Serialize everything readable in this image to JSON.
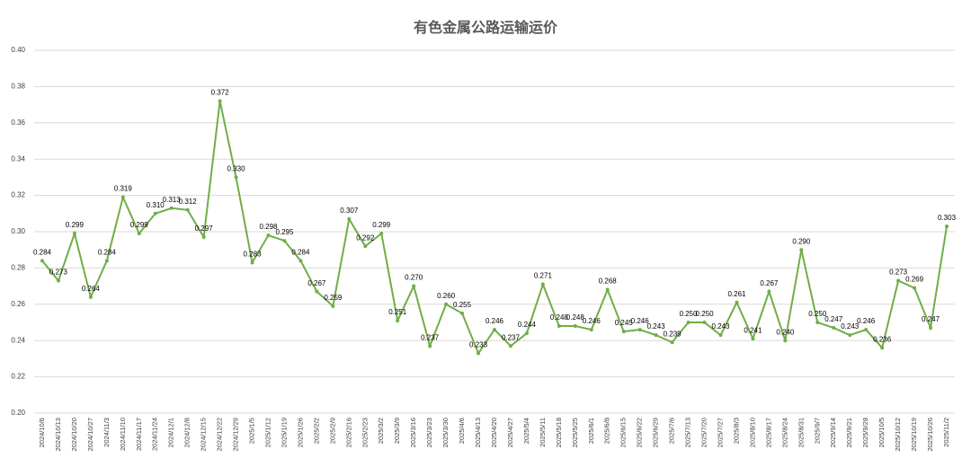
{
  "chart_data": {
    "type": "line",
    "title": "有色金属公路运输运价",
    "x": [
      "2024/10/6",
      "2024/10/13",
      "2024/10/20",
      "2024/10/27",
      "2024/11/3",
      "2024/11/10",
      "2024/11/17",
      "2024/11/24",
      "2024/12/1",
      "2024/12/8",
      "2024/12/15",
      "2024/12/22",
      "2024/12/29",
      "2025/1/5",
      "2025/1/12",
      "2025/1/19",
      "2025/1/26",
      "2025/2/2",
      "2025/2/9",
      "2025/2/16",
      "2025/2/23",
      "2025/3/2",
      "2025/3/9",
      "2025/3/16",
      "2025/3/23",
      "2025/3/30",
      "2025/4/6",
      "2025/4/13",
      "2025/4/20",
      "2025/4/27",
      "2025/5/4",
      "2025/5/11",
      "2025/5/18",
      "2025/5/25",
      "2025/6/1",
      "2025/6/8",
      "2025/6/15",
      "2025/6/22",
      "2025/6/29",
      "2025/7/6",
      "2025/7/13",
      "2025/7/20",
      "2025/7/27",
      "2025/8/3",
      "2025/8/10",
      "2025/8/17",
      "2025/8/24",
      "2025/8/31",
      "2025/9/7",
      "2025/9/14",
      "2025/9/21",
      "2025/9/28",
      "2025/10/5",
      "2025/10/12",
      "2025/10/19",
      "2025/10/26",
      "2025/11/2"
    ],
    "series": [
      {
        "color": "#70ad47",
        "values": [
          0.284,
          0.273,
          0.299,
          0.264,
          0.284,
          0.319,
          0.299,
          0.31,
          0.313,
          0.312,
          0.297,
          0.372,
          0.33,
          0.283,
          0.298,
          0.295,
          0.284,
          0.267,
          0.259,
          0.307,
          0.292,
          0.299,
          0.251,
          0.27,
          0.237,
          0.26,
          0.255,
          0.233,
          0.246,
          0.237,
          0.244,
          0.271,
          0.248,
          0.248,
          0.246,
          0.268,
          0.245,
          0.246,
          0.243,
          0.239,
          0.25,
          0.25,
          0.243,
          0.261,
          0.241,
          0.267,
          0.24,
          0.29,
          0.25,
          0.247,
          0.243,
          0.246,
          0.236,
          0.273,
          0.269,
          0.247,
          0.303
        ],
        "value_labels": [
          "0.284",
          "0.273",
          "0.299",
          "0.264",
          "0.284",
          "0.319",
          "0.299",
          "0.310",
          "0.313",
          "0.312",
          "0.297",
          "0.372",
          "0.330",
          "0.283",
          "0.298",
          "0.295",
          "0.284",
          "0.267",
          "0.259",
          "0.307",
          "0.292",
          "0.299",
          "0.251",
          "0.270",
          "0.237",
          "0.260",
          "0.255",
          "0.233",
          "0.246",
          "0.237",
          "0.244",
          "0.271",
          "0.248",
          "0.248",
          "0.246",
          "0.268",
          "0.245",
          "0.246",
          "0.243",
          "0.239",
          "0.250",
          "0.250",
          "0.243",
          "0.261",
          "0.241",
          "0.267",
          "0.240",
          "0.290",
          "0.250",
          "0.247",
          "0.243",
          "0.246",
          "0.236",
          "0.273",
          "0.269",
          "0.247",
          "0.303"
        ]
      }
    ],
    "ylim": [
      0.2,
      0.4
    ],
    "yticks": [
      {
        "value": 0.2,
        "label": "0.20"
      },
      0.22,
      0.24,
      0.26,
      0.28,
      {
        "value": 0.3,
        "label": "0.30"
      },
      0.32,
      0.34,
      0.36,
      0.38,
      {
        "value": 0.4,
        "label": "0.40"
      }
    ],
    "grid": true
  }
}
